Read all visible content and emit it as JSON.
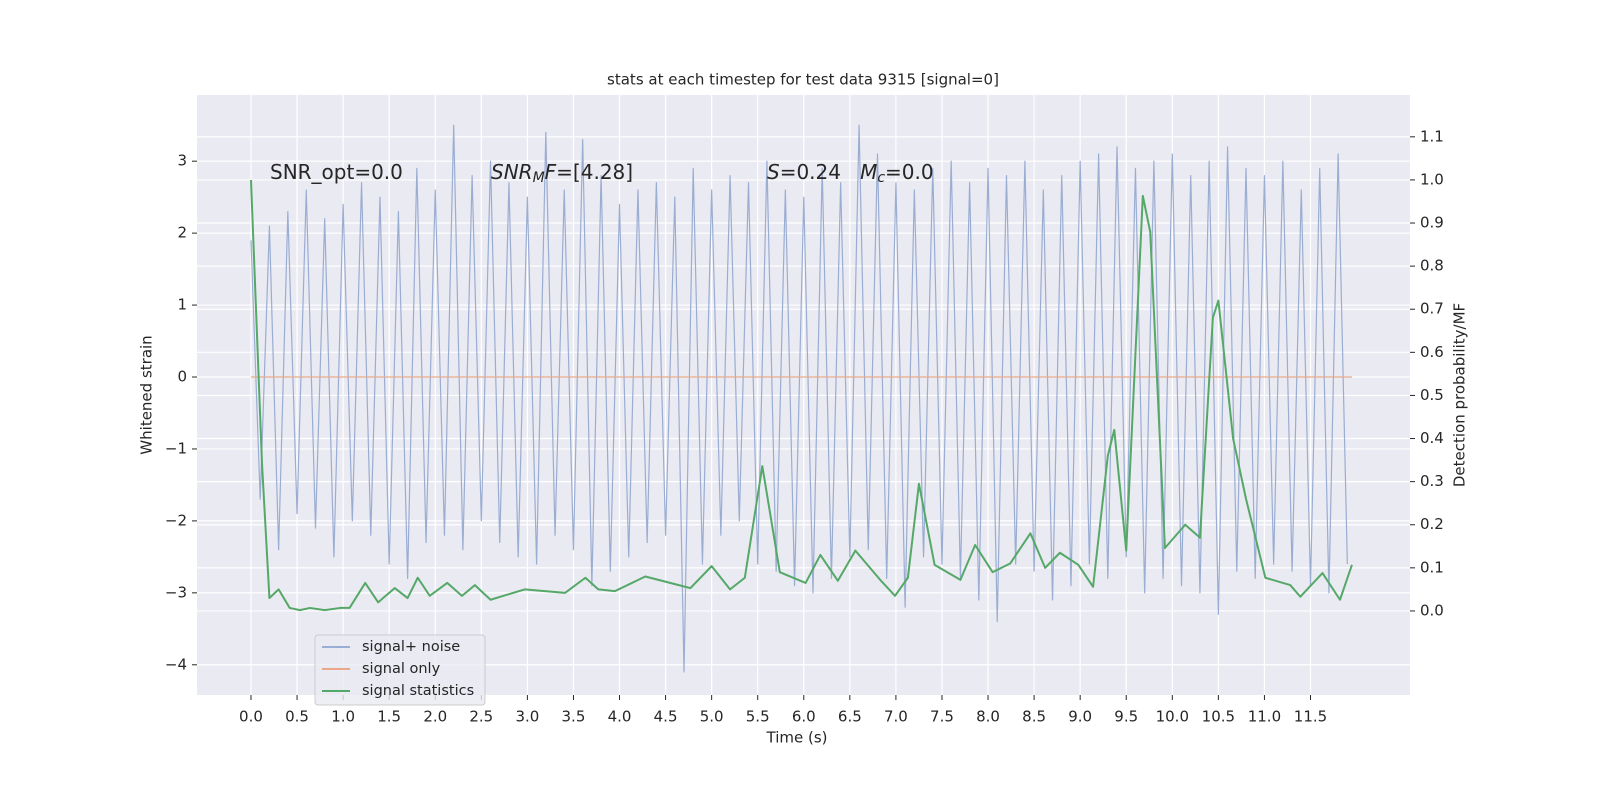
{
  "chart_data": {
    "type": "line",
    "title": "stats at each timestep for test data 9315 [signal=0]",
    "xlabel": "Time (s)",
    "ylabel": "Whitened strain",
    "y2label": "Detection probability/MF",
    "xlim": [
      -0.586,
      12.58
    ],
    "ylim": [
      -4.42,
      3.92
    ],
    "y2lim": [
      -0.195,
      1.197
    ],
    "xticks": [
      {
        "value": 0,
        "label": "0.0"
      },
      0.5,
      {
        "value": 1,
        "label": "1.0"
      },
      1.5,
      {
        "value": 2,
        "label": "2.0"
      },
      2.5,
      {
        "value": 3,
        "label": "3.0"
      },
      3.5,
      {
        "value": 4,
        "label": "4.0"
      },
      4.5,
      {
        "value": 5,
        "label": "5.0"
      },
      5.5,
      {
        "value": 6,
        "label": "6.0"
      },
      6.5,
      {
        "value": 7,
        "label": "7.0"
      },
      7.5,
      {
        "value": 8,
        "label": "8.0"
      },
      8.5,
      {
        "value": 9,
        "label": "9.0"
      },
      9.5,
      {
        "value": 10,
        "label": "10.0"
      },
      10.5,
      {
        "value": 11,
        "label": "11.0"
      },
      11.5
    ],
    "yticks": [
      {
        "value": -4,
        "label": "−4"
      },
      {
        "value": -3,
        "label": "−3"
      },
      {
        "value": -2,
        "label": "−2"
      },
      {
        "value": -1,
        "label": "−1"
      },
      0,
      1,
      2,
      3
    ],
    "y2ticks": [
      {
        "value": 0,
        "label": "0.0"
      },
      0.1,
      0.2,
      0.3,
      0.4,
      0.5,
      0.6,
      0.7,
      0.8,
      0.9,
      {
        "value": 1,
        "label": "1.0"
      },
      1.1
    ],
    "grid": true,
    "legend": "lower left",
    "annotations": [
      [
        "SNR_opt=0.0"
      ],
      [
        "SNR",
        "M",
        "F",
        "=[4.28]"
      ],
      [
        "S",
        "=0.24   ",
        "M",
        "c",
        "=0.0"
      ]
    ],
    "series": [
      {
        "name": "signal+ noise",
        "color": "#9aadd2",
        "x": [
          0,
          0.1,
          0.2,
          0.3,
          0.4,
          0.5,
          0.6,
          0.7,
          0.8,
          0.9,
          1,
          1.1,
          1.2,
          1.3,
          1.4,
          1.5,
          1.6,
          1.7,
          1.8,
          1.9,
          2,
          2.1,
          2.2,
          2.3,
          2.4,
          2.5,
          2.6,
          2.7,
          2.8,
          2.9,
          3,
          3.1,
          3.2,
          3.3,
          3.4,
          3.5,
          3.6,
          3.7,
          3.8,
          3.9,
          4,
          4.1,
          4.2,
          4.3,
          4.4,
          4.5,
          4.6,
          4.7,
          4.8,
          4.9,
          5,
          5.1,
          5.2,
          5.3,
          5.4,
          5.5,
          5.6,
          5.7,
          5.8,
          5.9,
          6,
          6.1,
          6.2,
          6.3,
          6.4,
          6.5,
          6.6,
          6.7,
          6.8,
          6.9,
          7,
          7.1,
          7.2,
          7.3,
          7.4,
          7.5,
          7.6,
          7.7,
          7.8,
          7.9,
          8,
          8.1,
          8.2,
          8.3,
          8.4,
          8.5,
          8.6,
          8.7,
          8.8,
          8.9,
          9,
          9.1,
          9.2,
          9.3,
          9.4,
          9.5,
          9.6,
          9.7,
          9.8,
          9.9,
          10,
          10.1,
          10.2,
          10.3,
          10.4,
          10.5,
          10.6,
          10.7,
          10.8,
          10.9,
          11,
          11.1,
          11.2,
          11.3,
          11.4,
          11.5,
          11.6,
          11.7,
          11.8,
          11.9
        ],
        "values": [
          1.9,
          -1.7,
          2.1,
          -2.4,
          2.3,
          -1.9,
          2.6,
          -2.1,
          2.2,
          -2.5,
          2.4,
          -2.0,
          2.7,
          -2.2,
          2.5,
          -2.6,
          2.3,
          -2.8,
          2.9,
          -2.3,
          2.6,
          -2.2,
          3.5,
          -2.4,
          2.8,
          -2.0,
          3.0,
          -2.3,
          2.7,
          -2.5,
          2.5,
          -2.6,
          3.4,
          -2.2,
          2.6,
          -2.4,
          3.3,
          -2.9,
          2.8,
          -2.7,
          2.4,
          -2.5,
          2.6,
          -2.3,
          2.7,
          -2.2,
          2.5,
          -4.1,
          2.9,
          -2.6,
          2.6,
          -2.2,
          2.8,
          -2.0,
          2.7,
          -2.6,
          3.0,
          -2.7,
          2.6,
          -2.9,
          2.5,
          -3.0,
          2.9,
          -2.8,
          2.7,
          -2.5,
          3.5,
          -2.4,
          3.1,
          -2.8,
          2.7,
          -3.2,
          2.6,
          -2.5,
          2.9,
          -2.6,
          3.0,
          -2.8,
          2.7,
          -3.1,
          2.9,
          -3.4,
          2.8,
          -2.6,
          3.0,
          -2.7,
          2.6,
          -3.1,
          2.8,
          -2.9,
          3.0,
          -2.6,
          3.1,
          -2.8,
          3.2,
          -2.5,
          2.9,
          -3.0,
          3.0,
          -2.8,
          3.1,
          -2.9,
          2.8,
          -3.0,
          3.0,
          -3.3,
          3.2,
          -2.7,
          2.9,
          -2.8,
          2.8,
          -2.6,
          3.0,
          -2.7,
          2.6,
          -2.9,
          2.9,
          -3.0,
          3.1,
          -2.6
        ]
      },
      {
        "name": "signal only",
        "color": "#e8a98a",
        "x": [
          0,
          11.95
        ],
        "values": [
          0,
          0
        ]
      },
      {
        "name": "signal statistics",
        "color": "#55a868",
        "axis": "y2",
        "x": [
          0,
          0.12,
          0.2,
          0.3,
          0.42,
          0.53,
          0.64,
          0.8,
          0.97,
          1.07,
          1.24,
          1.38,
          1.56,
          1.7,
          1.81,
          1.94,
          2.13,
          2.29,
          2.43,
          2.6,
          2.97,
          3.41,
          3.63,
          3.77,
          3.95,
          4.28,
          4.77,
          5.0,
          5.2,
          5.36,
          5.55,
          5.74,
          6.02,
          6.18,
          6.37,
          6.56,
          6.83,
          6.99,
          7.13,
          7.25,
          7.42,
          7.7,
          7.86,
          8.05,
          8.24,
          8.46,
          8.62,
          8.78,
          8.98,
          9.14,
          9.3,
          9.37,
          9.5,
          9.68,
          9.76,
          9.92,
          10.14,
          10.3,
          10.44,
          10.5,
          10.66,
          10.8,
          11.01,
          11.28,
          11.39,
          11.63,
          11.82,
          11.95
        ],
        "values": [
          1.0,
          0.34,
          0.03,
          0.05,
          0.007,
          0.002,
          0.007,
          0.002,
          0.007,
          0.007,
          0.065,
          0.02,
          0.053,
          0.03,
          0.077,
          0.035,
          0.065,
          0.035,
          0.06,
          0.026,
          0.05,
          0.042,
          0.077,
          0.05,
          0.046,
          0.08,
          0.053,
          0.104,
          0.05,
          0.077,
          0.336,
          0.09,
          0.065,
          0.13,
          0.07,
          0.14,
          0.072,
          0.035,
          0.077,
          0.295,
          0.107,
          0.072,
          0.153,
          0.09,
          0.11,
          0.18,
          0.1,
          0.135,
          0.107,
          0.056,
          0.36,
          0.42,
          0.14,
          0.963,
          0.88,
          0.146,
          0.2,
          0.17,
          0.68,
          0.72,
          0.4,
          0.26,
          0.077,
          0.06,
          0.033,
          0.088,
          0.026,
          0.107
        ]
      }
    ]
  }
}
